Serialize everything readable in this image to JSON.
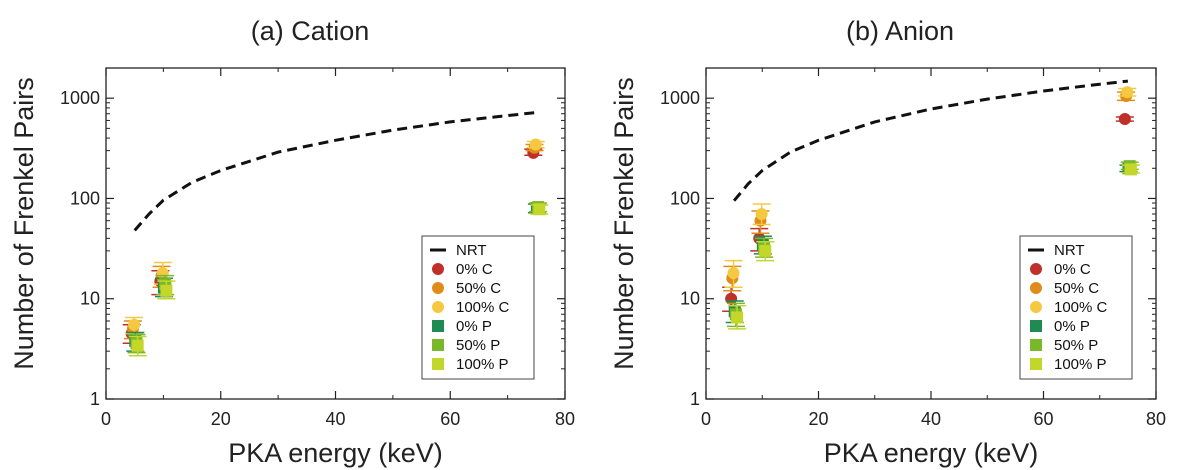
{
  "chart_data": [
    {
      "type": "scatter",
      "title": "(a) Cation",
      "xlabel": "PKA energy (keV)",
      "ylabel": "Number of Frenkel Pairs",
      "xlim": [
        0,
        80
      ],
      "ylim": [
        1,
        2000
      ],
      "yscale": "log",
      "xticks": [
        "0",
        "20",
        "40",
        "60",
        "80"
      ],
      "yticks": [
        "1",
        "10",
        "100",
        "1000"
      ],
      "legend_position": "bottom-right",
      "series": [
        {
          "name": "NRT",
          "kind": "line",
          "style": "dashed",
          "color": "#111111",
          "x": [
            5,
            7.5,
            10,
            15,
            20,
            30,
            40,
            50,
            60,
            70,
            75
          ],
          "y": [
            48,
            70,
            96,
            145,
            190,
            290,
            380,
            480,
            580,
            670,
            720
          ]
        },
        {
          "name": "0% C",
          "kind": "marker",
          "shape": "circle",
          "color": "#c0302a",
          "x": [
            5,
            10,
            75
          ],
          "y": [
            4.5,
            15,
            285
          ],
          "err_lo": [
            3.6,
            11,
            270
          ],
          "err_hi": [
            5.5,
            19,
            310
          ]
        },
        {
          "name": "50% C",
          "kind": "marker",
          "shape": "circle",
          "color": "#e08c1a",
          "x": [
            5,
            10,
            75
          ],
          "y": [
            5.0,
            17,
            320
          ],
          "err_lo": [
            4.0,
            13,
            300
          ],
          "err_hi": [
            6.0,
            21,
            345
          ]
        },
        {
          "name": "100% C",
          "kind": "marker",
          "shape": "circle",
          "color": "#f5c842",
          "x": [
            5,
            10,
            75
          ],
          "y": [
            5.5,
            18,
            345
          ],
          "err_lo": [
            4.5,
            14,
            320
          ],
          "err_hi": [
            6.5,
            23,
            370
          ]
        },
        {
          "name": "0% P",
          "kind": "marker",
          "shape": "square",
          "color": "#1f8a52",
          "x": [
            5,
            10,
            75
          ],
          "y": [
            3.8,
            13,
            80
          ],
          "err_lo": [
            3.0,
            10.5,
            72
          ],
          "err_hi": [
            4.6,
            16,
            88
          ]
        },
        {
          "name": "50% P",
          "kind": "marker",
          "shape": "square",
          "color": "#7ab82a",
          "x": [
            5,
            10,
            75
          ],
          "y": [
            3.6,
            14,
            82
          ],
          "err_lo": [
            2.9,
            11,
            74
          ],
          "err_hi": [
            4.4,
            17,
            90
          ]
        },
        {
          "name": "100% P",
          "kind": "marker",
          "shape": "square",
          "color": "#c3d62a",
          "x": [
            5,
            10,
            75
          ],
          "y": [
            3.4,
            12,
            78
          ],
          "err_lo": [
            2.7,
            10,
            70
          ],
          "err_hi": [
            4.2,
            15,
            86
          ]
        }
      ]
    },
    {
      "type": "scatter",
      "title": "(b) Anion",
      "xlabel": "PKA energy (keV)",
      "ylabel": "Number of Frenkel Pairs",
      "xlim": [
        0,
        80
      ],
      "ylim": [
        1,
        2000
      ],
      "yscale": "log",
      "xticks": [
        "0",
        "20",
        "40",
        "60",
        "80"
      ],
      "yticks": [
        "1",
        "10",
        "100",
        "1000"
      ],
      "legend_position": "bottom-right",
      "series": [
        {
          "name": "NRT",
          "kind": "line",
          "style": "dashed",
          "color": "#111111",
          "x": [
            5,
            7.5,
            10,
            15,
            20,
            30,
            40,
            50,
            60,
            70,
            75
          ],
          "y": [
            95,
            140,
            190,
            290,
            380,
            580,
            780,
            980,
            1180,
            1380,
            1480
          ]
        },
        {
          "name": "0% C",
          "kind": "marker",
          "shape": "circle",
          "color": "#c0302a",
          "x": [
            5,
            10,
            75
          ],
          "y": [
            10,
            40,
            620
          ],
          "err_lo": [
            7.5,
            30,
            590
          ],
          "err_hi": [
            13,
            50,
            650
          ]
        },
        {
          "name": "50% C",
          "kind": "marker",
          "shape": "circle",
          "color": "#e08c1a",
          "x": [
            5,
            10,
            75
          ],
          "y": [
            16,
            60,
            1050
          ],
          "err_lo": [
            12,
            45,
            950
          ],
          "err_hi": [
            21,
            75,
            1150
          ]
        },
        {
          "name": "100% C",
          "kind": "marker",
          "shape": "circle",
          "color": "#f5c842",
          "x": [
            5,
            10,
            75
          ],
          "y": [
            18,
            70,
            1150
          ],
          "err_lo": [
            13,
            55,
            1050
          ],
          "err_hi": [
            24,
            88,
            1250
          ]
        },
        {
          "name": "0% P",
          "kind": "marker",
          "shape": "square",
          "color": "#1f8a52",
          "x": [
            5,
            10,
            75
          ],
          "y": [
            7.5,
            35,
            200
          ],
          "err_lo": [
            5.8,
            28,
            185
          ],
          "err_hi": [
            9.5,
            42,
            215
          ]
        },
        {
          "name": "50% P",
          "kind": "marker",
          "shape": "square",
          "color": "#7ab82a",
          "x": [
            5,
            10,
            75
          ],
          "y": [
            7.0,
            32,
            210
          ],
          "err_lo": [
            5.3,
            26,
            195
          ],
          "err_hi": [
            9.0,
            40,
            230
          ]
        },
        {
          "name": "100% P",
          "kind": "marker",
          "shape": "square",
          "color": "#c3d62a",
          "x": [
            5,
            10,
            75
          ],
          "y": [
            6.5,
            30,
            195
          ],
          "err_lo": [
            5.0,
            24,
            180
          ],
          "err_hi": [
            8.5,
            37,
            215
          ]
        }
      ]
    }
  ]
}
